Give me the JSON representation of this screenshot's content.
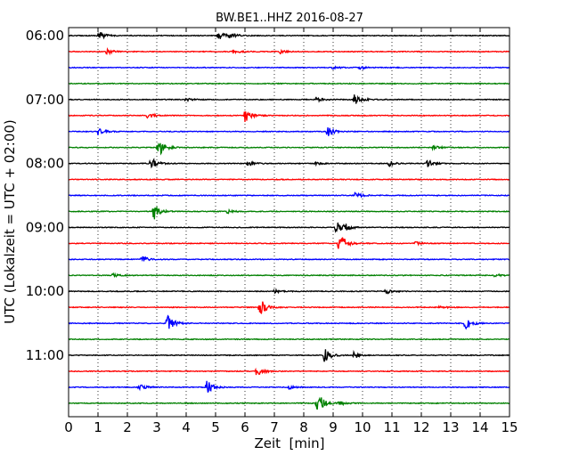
{
  "chart_data": {
    "type": "line",
    "title": "BW.BE1..HHZ 2016-08-27",
    "xlabel": "Zeit  [min]",
    "ylabel": "UTC (Lokalzeit = UTC + 02:00)",
    "xlim": [
      0,
      15
    ],
    "x_ticks": [
      0,
      1,
      2,
      3,
      4,
      5,
      6,
      7,
      8,
      9,
      10,
      11,
      12,
      13,
      14,
      15
    ],
    "hour_labels": [
      "06:00",
      "07:00",
      "08:00",
      "09:00",
      "10:00",
      "11:00"
    ],
    "trace_minutes": 15,
    "grid": "vertical dotted",
    "colors": [
      "#000000",
      "#ff0000",
      "#0000ff",
      "#008000"
    ],
    "traces": [
      {
        "start": "06:00",
        "color": "#000000",
        "events": [
          [
            1.0,
            7
          ],
          [
            5.1,
            5
          ],
          [
            5.45,
            4
          ]
        ]
      },
      {
        "start": "06:15",
        "color": "#ff0000",
        "events": [
          [
            1.3,
            3
          ],
          [
            5.6,
            2
          ],
          [
            7.2,
            2
          ]
        ]
      },
      {
        "start": "06:30",
        "color": "#0000ff",
        "events": [
          [
            9.0,
            2
          ],
          [
            9.9,
            2
          ]
        ]
      },
      {
        "start": "06:45",
        "color": "#008000",
        "events": []
      },
      {
        "start": "07:00",
        "color": "#000000",
        "events": [
          [
            4.0,
            2
          ],
          [
            8.4,
            3
          ],
          [
            9.7,
            10
          ]
        ]
      },
      {
        "start": "07:15",
        "color": "#ff0000",
        "events": [
          [
            2.7,
            4
          ],
          [
            6.0,
            8
          ]
        ]
      },
      {
        "start": "07:30",
        "color": "#0000ff",
        "events": [
          [
            1.0,
            4
          ],
          [
            8.8,
            6
          ]
        ]
      },
      {
        "start": "07:45",
        "color": "#008000",
        "events": [
          [
            3.05,
            11
          ],
          [
            12.4,
            3
          ]
        ]
      },
      {
        "start": "08:00",
        "color": "#000000",
        "events": [
          [
            2.8,
            7
          ],
          [
            6.1,
            3
          ],
          [
            8.4,
            2
          ],
          [
            10.9,
            3
          ],
          [
            12.2,
            5
          ]
        ]
      },
      {
        "start": "08:15",
        "color": "#ff0000",
        "events": []
      },
      {
        "start": "08:30",
        "color": "#0000ff",
        "events": [
          [
            9.75,
            4
          ]
        ]
      },
      {
        "start": "08:45",
        "color": "#008000",
        "events": [
          [
            2.9,
            10
          ],
          [
            5.4,
            2
          ]
        ]
      },
      {
        "start": "09:00",
        "color": "#000000",
        "events": [
          [
            9.1,
            8
          ],
          [
            9.4,
            3
          ]
        ]
      },
      {
        "start": "09:15",
        "color": "#ff0000",
        "events": [
          [
            9.2,
            14
          ],
          [
            11.8,
            2
          ]
        ]
      },
      {
        "start": "09:30",
        "color": "#0000ff",
        "events": [
          [
            2.5,
            4
          ]
        ]
      },
      {
        "start": "09:45",
        "color": "#008000",
        "events": [
          [
            1.5,
            2
          ],
          [
            14.5,
            2
          ]
        ]
      },
      {
        "start": "10:00",
        "color": "#000000",
        "events": [
          [
            7.0,
            2
          ],
          [
            10.8,
            3
          ]
        ]
      },
      {
        "start": "10:15",
        "color": "#ff0000",
        "events": [
          [
            6.5,
            11
          ],
          [
            12.6,
            2
          ]
        ]
      },
      {
        "start": "10:30",
        "color": "#0000ff",
        "events": [
          [
            3.35,
            12
          ],
          [
            13.5,
            8
          ]
        ]
      },
      {
        "start": "10:45",
        "color": "#008000",
        "events": []
      },
      {
        "start": "11:00",
        "color": "#000000",
        "events": [
          [
            8.7,
            8
          ],
          [
            9.7,
            4
          ]
        ]
      },
      {
        "start": "11:15",
        "color": "#ff0000",
        "events": [
          [
            6.4,
            6
          ]
        ]
      },
      {
        "start": "11:30",
        "color": "#0000ff",
        "events": [
          [
            2.4,
            4
          ],
          [
            4.7,
            8
          ],
          [
            7.5,
            2
          ]
        ]
      },
      {
        "start": "11:45",
        "color": "#008000",
        "events": [
          [
            8.45,
            14
          ],
          [
            9.2,
            3
          ]
        ]
      }
    ]
  }
}
